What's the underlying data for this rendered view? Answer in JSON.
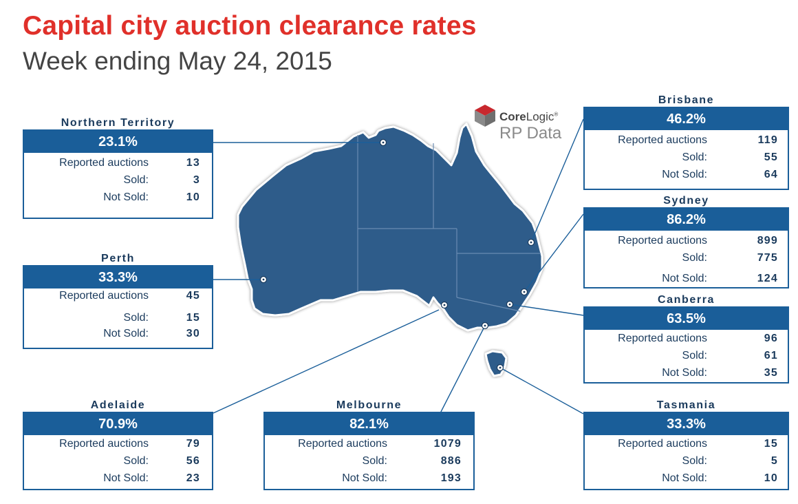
{
  "header": {
    "title": "Capital city auction clearance rates",
    "subtitle": "Week ending May 24, 2015"
  },
  "logo": {
    "core": "Core",
    "logic": "Logic",
    "tm": "®",
    "rp_data": "RP Data"
  },
  "labels": {
    "reported": "Reported auctions",
    "sold": "Sold:",
    "not_sold": "Not Sold:"
  },
  "colors": {
    "title": "#e0302a",
    "subtitle": "#444444",
    "map_fill": "#2e5b8a",
    "panel_accent": "#1a5e99",
    "logo_red": "#c8282e"
  },
  "panels": {
    "northern_territory": {
      "name": "Northern Territory",
      "rate": "23.1%",
      "reported": "13",
      "sold": "3",
      "not_sold": "10"
    },
    "perth": {
      "name": "Perth",
      "rate": "33.3%",
      "reported": "45",
      "sold": "15",
      "not_sold": "30"
    },
    "adelaide": {
      "name": "Adelaide",
      "rate": "70.9%",
      "reported": "79",
      "sold": "56",
      "not_sold": "23"
    },
    "melbourne": {
      "name": "Melbourne",
      "rate": "82.1%",
      "reported": "1079",
      "sold": "886",
      "not_sold": "193"
    },
    "brisbane": {
      "name": "Brisbane",
      "rate": "46.2%",
      "reported": "119",
      "sold": "55",
      "not_sold": "64"
    },
    "sydney": {
      "name": "Sydney",
      "rate": "86.2%",
      "reported": "899",
      "sold": "775",
      "not_sold": "124"
    },
    "canberra": {
      "name": "Canberra",
      "rate": "63.5%",
      "reported": "96",
      "sold": "61",
      "not_sold": "35"
    },
    "tasmania": {
      "name": "Tasmania",
      "rate": "33.3%",
      "reported": "15",
      "sold": "5",
      "not_sold": "10"
    }
  }
}
